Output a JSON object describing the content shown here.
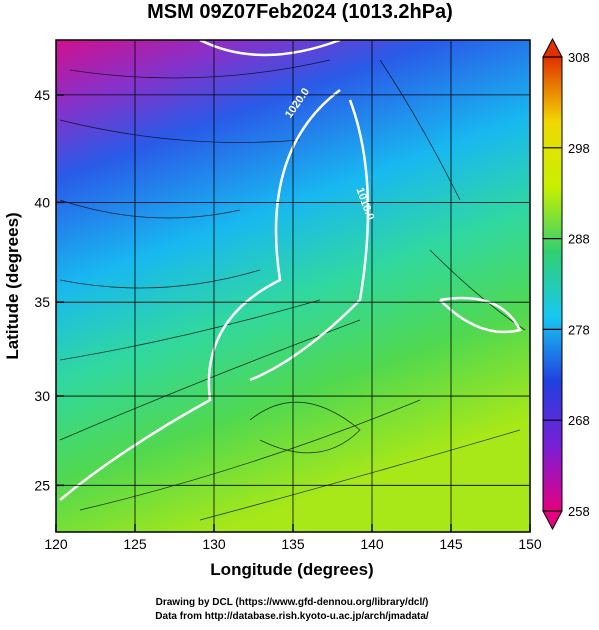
{
  "chart_data": {
    "type": "map",
    "title": "MSM 09Z07Feb2024 (1013.2hPa)",
    "x_label": "Longitude (degrees)",
    "y_label": "Latitude  (degrees)",
    "xlim": [
      120,
      150
    ],
    "ylim": [
      22.3,
      47.4
    ],
    "xticks": [
      120,
      125,
      130,
      135,
      140,
      145,
      150
    ],
    "yticks": [
      25,
      30,
      35,
      40,
      45
    ],
    "projection": "mercator",
    "grid": true,
    "colorbar": {
      "range": [
        258,
        308
      ],
      "ticks": [
        258,
        268,
        278,
        288,
        298,
        308
      ],
      "colors": [
        "#e5007f",
        "#7a1fd6",
        "#2040e0",
        "#18c8f0",
        "#30d070",
        "#c8f000",
        "#f0d800",
        "#e03000"
      ]
    },
    "annotations": [
      "1020.0",
      "1016.0"
    ],
    "credits": [
      "Drawing by DCL (https://www.gfd-dennou.org/library/dcl/)",
      "Data from http://database.rish.kyoto-u.ac.jp/arch/jmadata/"
    ]
  }
}
